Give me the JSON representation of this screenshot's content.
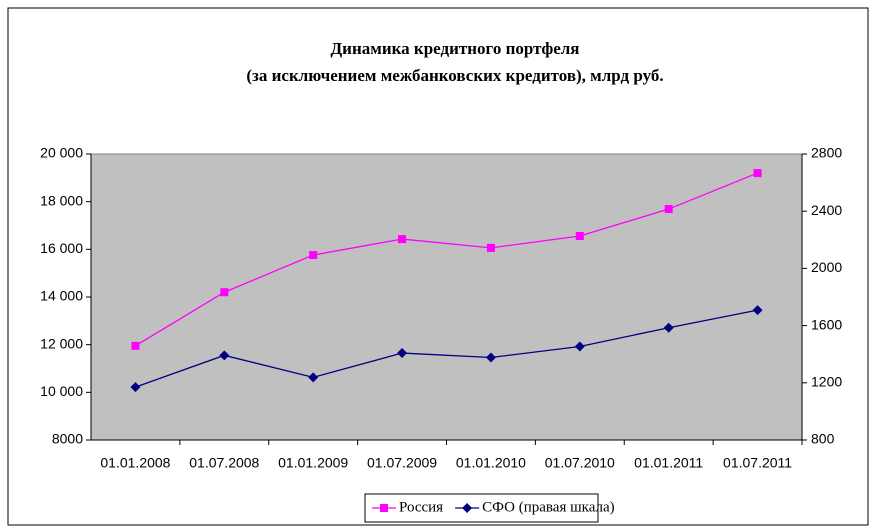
{
  "chart_data": {
    "type": "line",
    "title": [
      "Динамика кредитного портфеля",
      "(за исключением межбанковских кредитов), млрд руб."
    ],
    "categories": [
      "01.01.2008",
      "01.07.2008",
      "01.01.2009",
      "01.07.2009",
      "01.01.2010",
      "01.07.2010",
      "01.01.2011",
      "01.07.2011"
    ],
    "series": [
      {
        "name": "Россия",
        "color": "#ff00ff",
        "marker": "square",
        "values": [
          11950,
          14200,
          15760,
          16430,
          16060,
          16560,
          17690,
          19200
        ]
      },
      {
        "name": "СФО (правая шкала)",
        "color": "#000080",
        "marker": "diamond",
        "axis": "y2",
        "values": [
          1170,
          1392,
          1238,
          1408,
          1377,
          1454,
          1585,
          1708
        ]
      }
    ],
    "ylim": [
      8000,
      20000
    ],
    "yticks": [
      8000,
      {
        "value": 10000,
        "label": "10 000"
      },
      {
        "value": 12000,
        "label": "12 000"
      },
      {
        "value": 14000,
        "label": "14 000"
      },
      {
        "value": 16000,
        "label": "16 000"
      },
      {
        "value": 18000,
        "label": "18 000"
      },
      {
        "value": 20000,
        "label": "20 000"
      }
    ],
    "y2lim": [
      800,
      2800
    ],
    "y2ticks": [
      800,
      1200,
      1600,
      2000,
      2400,
      2800
    ],
    "legend": "bottom"
  }
}
